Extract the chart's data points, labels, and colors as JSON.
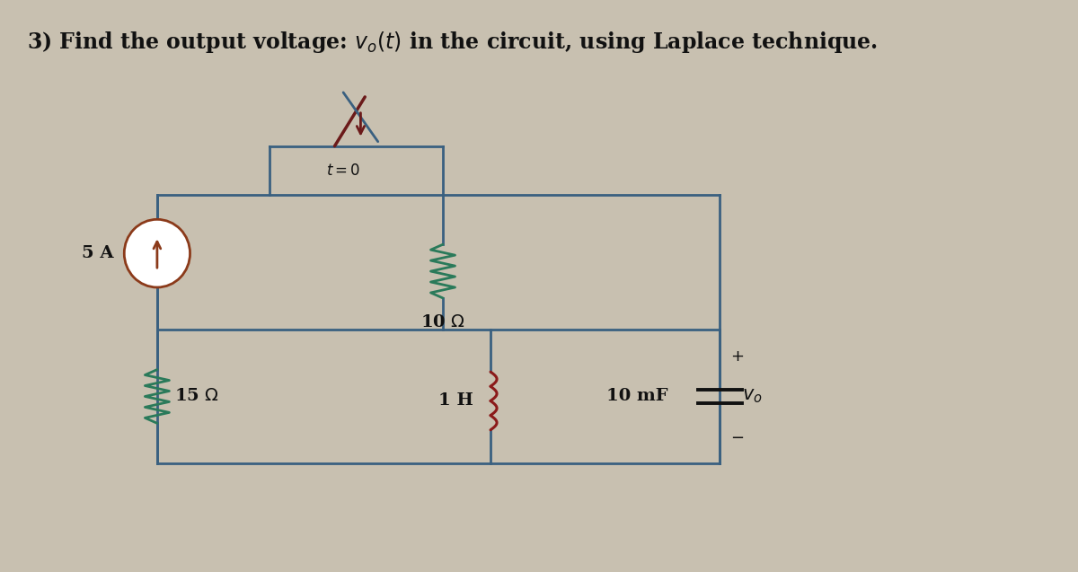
{
  "title_prefix": "3) Find the output voltage: ",
  "title_suffix": " in the circuit, using Laplace technique.",
  "bg_color": "#c8c0b0",
  "line_color": "#3a6080",
  "switch_color_dark": "#6b1a1a",
  "switch_color_light": "#3a6080",
  "resistor_color": "#2a7a5a",
  "inductor_color": "#8b1a1a",
  "source_color": "#8b3a1a",
  "text_color": "#111111",
  "lw": 2.0,
  "title_fontsize": 17,
  "label_fontsize": 14
}
